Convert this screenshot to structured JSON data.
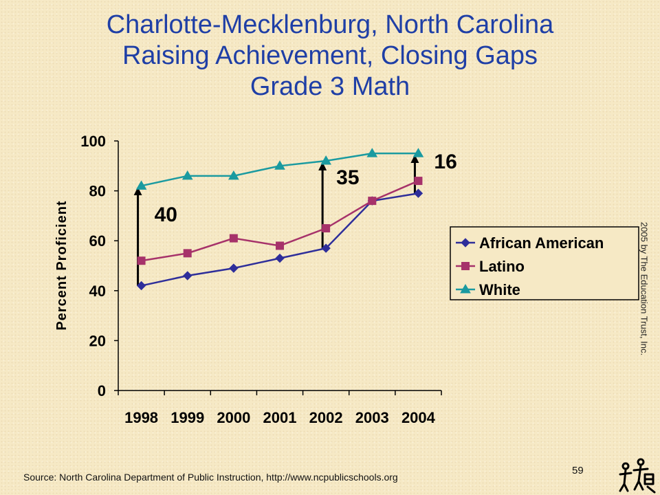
{
  "slide": {
    "title_lines": [
      "Charlotte-Mecklenburg, North Carolina",
      "Raising Achievement, Closing Gaps",
      "Grade 3 Math"
    ],
    "credit": "2005  by The Education Trust, Inc.",
    "source": "Source: North Carolina Department of Public Instruction, http://www.ncpublicschools.org",
    "page_number": "59",
    "logo_icon": "education-trust-logo-icon"
  },
  "chart_data": {
    "type": "line",
    "ylabel": "Percent Proficient",
    "xlabel": "",
    "categories": [
      "1998",
      "1999",
      "2000",
      "2001",
      "2002",
      "2003",
      "2004"
    ],
    "yticks": [
      "0",
      "20",
      "40",
      "60",
      "80",
      "100"
    ],
    "ylim": [
      0,
      100
    ],
    "grid": false,
    "legend_position": "right",
    "series": [
      {
        "name": "African American",
        "values": [
          42,
          46,
          49,
          53,
          57,
          76,
          79
        ],
        "color": "#2e2e9a",
        "marker": "diamond"
      },
      {
        "name": "Latino",
        "values": [
          52,
          55,
          61,
          58,
          65,
          76,
          84
        ],
        "color": "#a6326a",
        "marker": "square"
      },
      {
        "name": "White",
        "values": [
          82,
          86,
          86,
          90,
          92,
          95,
          95
        ],
        "color": "#1a9aa0",
        "marker": "triangle"
      }
    ],
    "gap_annotations": [
      {
        "label": "40",
        "category": "1998",
        "from": 42,
        "to": 82
      },
      {
        "label": "35",
        "category": "2002",
        "from": 57,
        "to": 92
      },
      {
        "label": "16",
        "category": "2004",
        "from": 79,
        "to": 95
      }
    ]
  }
}
